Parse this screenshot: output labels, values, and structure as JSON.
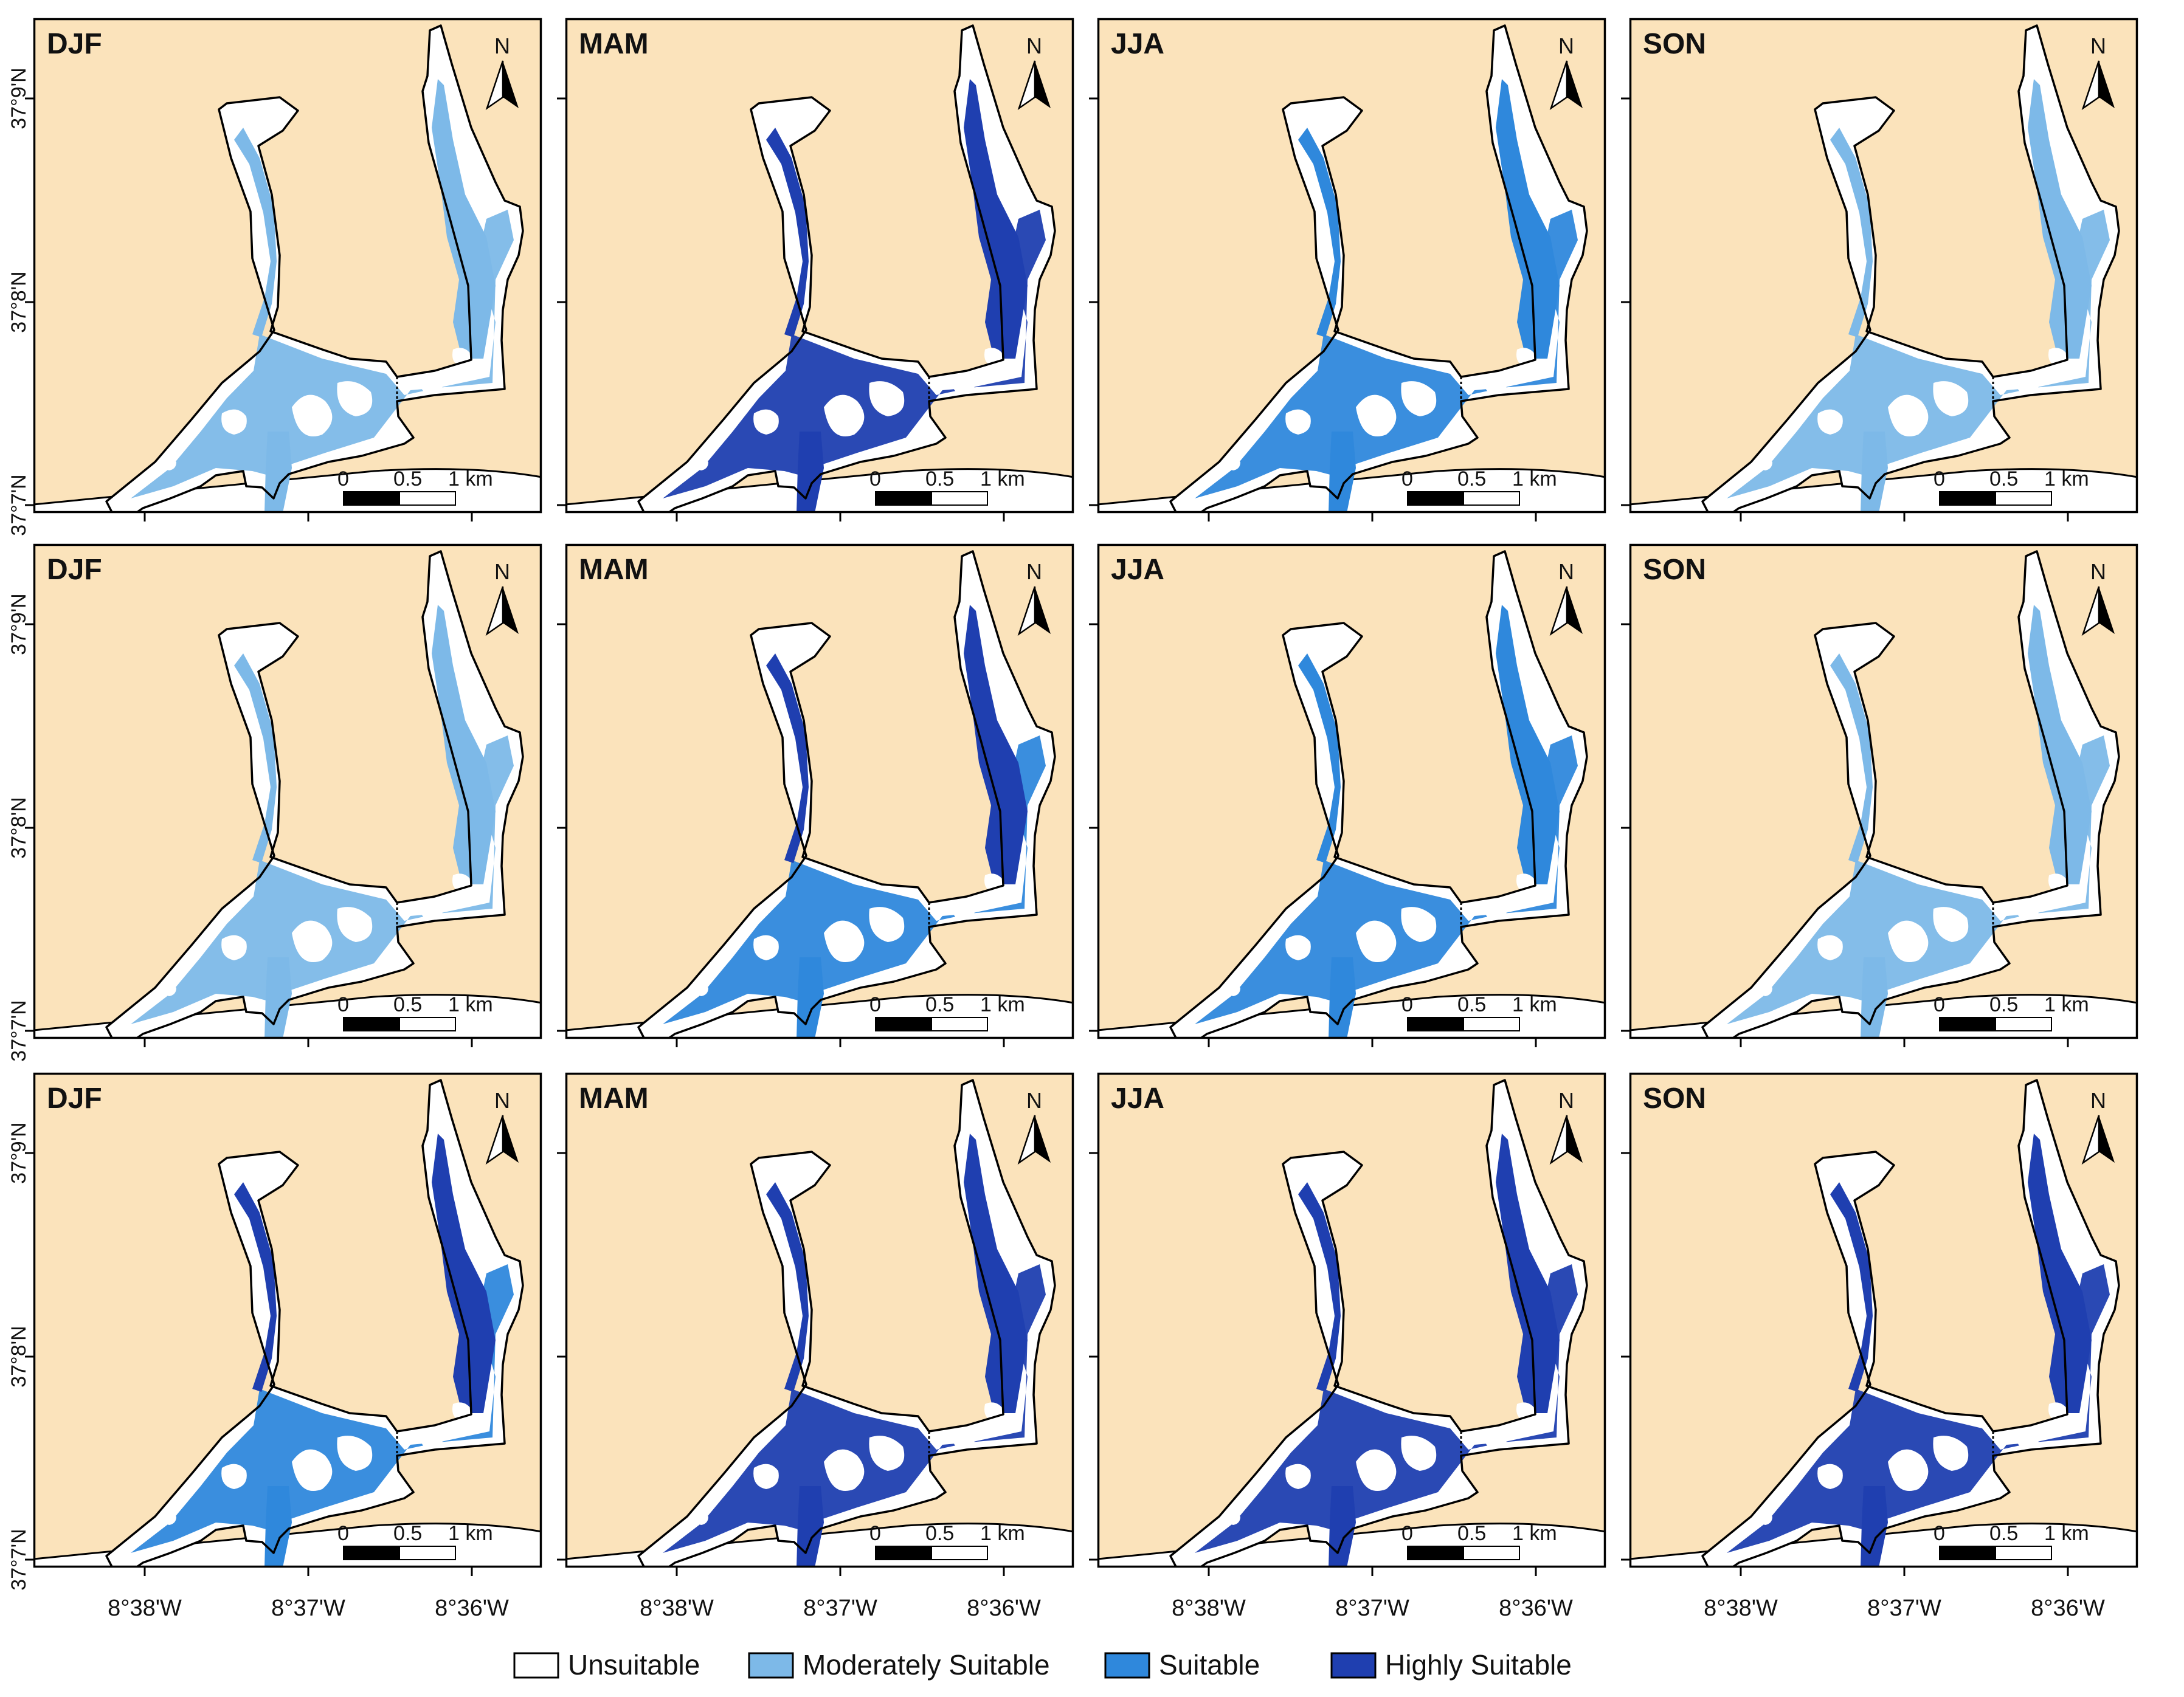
{
  "figure": {
    "seasons": [
      "DJF",
      "MAM",
      "JJA",
      "SON"
    ],
    "rows": 3,
    "north_label": "N",
    "scalebar_ticks": [
      "0",
      "0.5",
      "1 km"
    ],
    "lat_labels": [
      "37°9'N",
      "37°8'N",
      "37°7'N"
    ],
    "lon_labels": [
      "8°38'W",
      "8°37'W",
      "8°36'W"
    ]
  },
  "legend": {
    "items": [
      {
        "label": "Unsuitable",
        "color": "#ffffff"
      },
      {
        "label": "Moderately Suitable",
        "color": "#7db9e8"
      },
      {
        "label": "Suitable",
        "color": "#2f88dc"
      },
      {
        "label": "Highly Suitable",
        "color": "#1f3fb0"
      }
    ]
  },
  "colors": {
    "land": "#fbe3bb",
    "water_unsuitable": "#ffffff",
    "outline": "#000000"
  },
  "panels": [
    {
      "season": "DJF",
      "suitability": [
        0.15,
        0.75,
        0.1,
        0.0
      ]
    },
    {
      "season": "MAM",
      "suitability": [
        0.2,
        0.05,
        0.35,
        0.4
      ]
    },
    {
      "season": "JJA",
      "suitability": [
        0.2,
        0.15,
        0.55,
        0.1
      ]
    },
    {
      "season": "SON",
      "suitability": [
        0.2,
        0.7,
        0.1,
        0.0
      ]
    },
    {
      "season": "DJF",
      "suitability": [
        0.25,
        0.65,
        0.1,
        0.0
      ]
    },
    {
      "season": "MAM",
      "suitability": [
        0.2,
        0.05,
        0.5,
        0.25
      ]
    },
    {
      "season": "JJA",
      "suitability": [
        0.2,
        0.15,
        0.6,
        0.05
      ]
    },
    {
      "season": "SON",
      "suitability": [
        0.25,
        0.65,
        0.1,
        0.0
      ]
    },
    {
      "season": "DJF",
      "suitability": [
        0.3,
        0.1,
        0.35,
        0.25
      ]
    },
    {
      "season": "MAM",
      "suitability": [
        0.2,
        0.0,
        0.05,
        0.75
      ]
    },
    {
      "season": "JJA",
      "suitability": [
        0.2,
        0.0,
        0.05,
        0.75
      ]
    },
    {
      "season": "SON",
      "suitability": [
        0.25,
        0.05,
        0.25,
        0.45
      ]
    }
  ]
}
